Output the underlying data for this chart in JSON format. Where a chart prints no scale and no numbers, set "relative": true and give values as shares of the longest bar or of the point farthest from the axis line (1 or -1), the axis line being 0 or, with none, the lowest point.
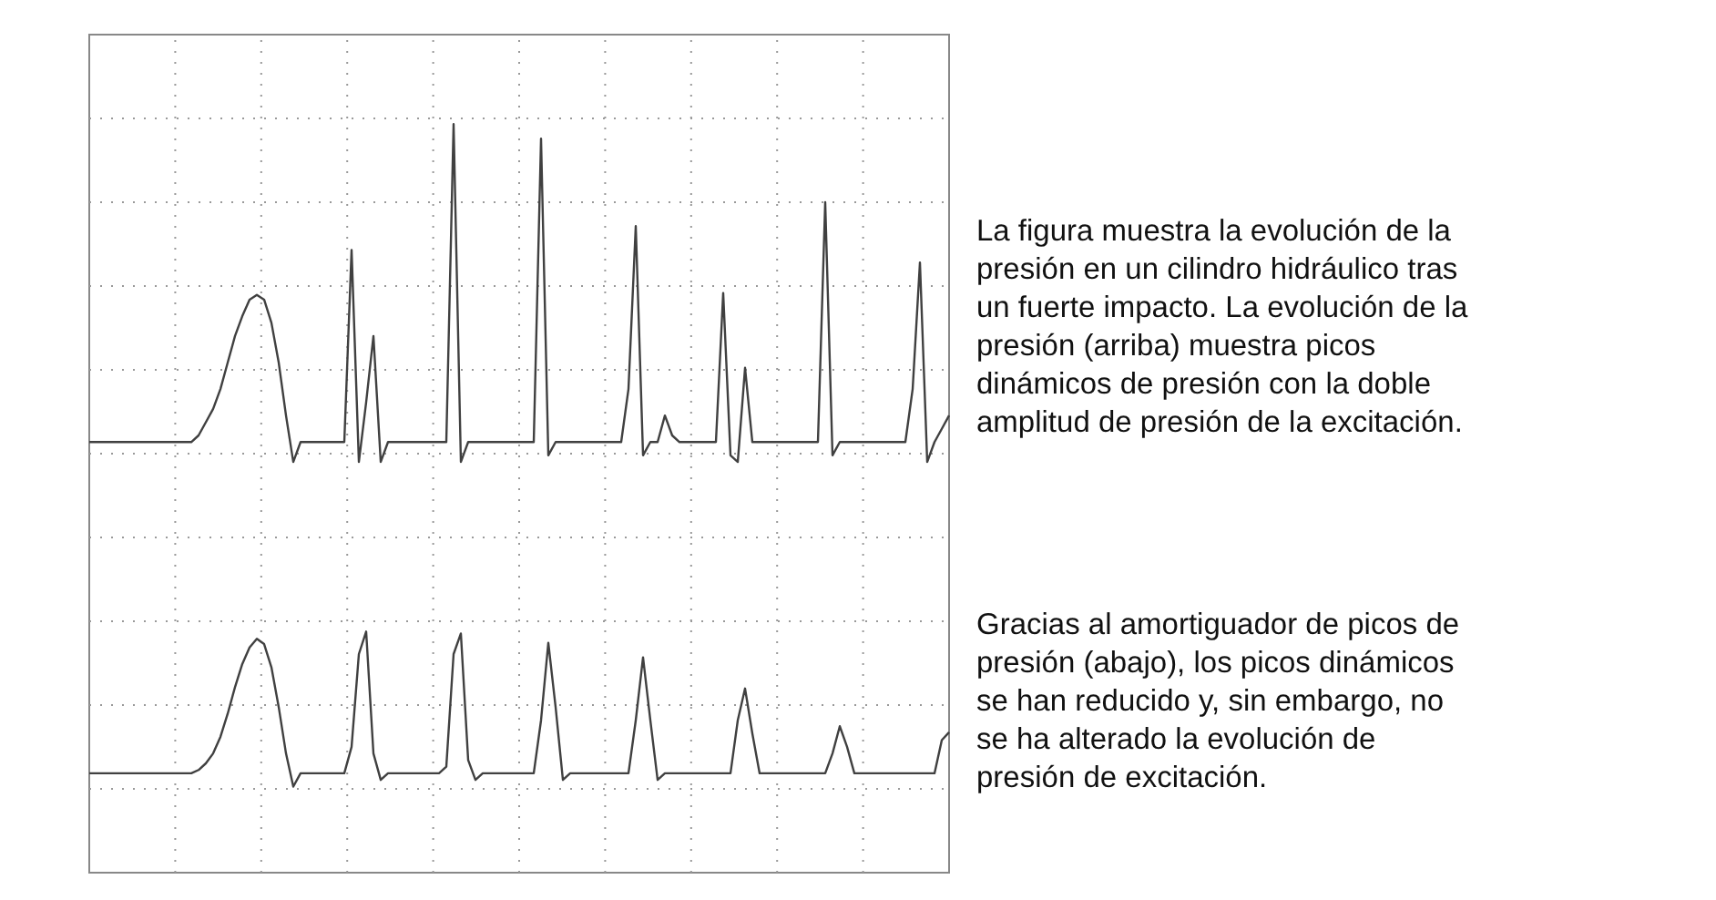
{
  "chart_data": {
    "type": "line",
    "relative": true,
    "grid": true,
    "categories": [
      null,
      null,
      null,
      null,
      null,
      null,
      null,
      null,
      null,
      null,
      null,
      null,
      null,
      null,
      null,
      null,
      null,
      null,
      null,
      null,
      null,
      null,
      null,
      null,
      null,
      null,
      null,
      null,
      null,
      null,
      null,
      null,
      null,
      null,
      null,
      null,
      null,
      null,
      null,
      null,
      null,
      null,
      null,
      null,
      null,
      null,
      null,
      null,
      null,
      null,
      null,
      null,
      null,
      null,
      null,
      null,
      null,
      null,
      null,
      null,
      null,
      null,
      null,
      null,
      null,
      null,
      null,
      null,
      null,
      null,
      null,
      null,
      null,
      null,
      null,
      null,
      null,
      null,
      null,
      null,
      null,
      null,
      null,
      null,
      null,
      null,
      null,
      null,
      null,
      null,
      null,
      null,
      null,
      null,
      null,
      null,
      null,
      null,
      null,
      null,
      null,
      null,
      null,
      null,
      null,
      null,
      null,
      null,
      null,
      null,
      null,
      null,
      null,
      null,
      null,
      null,
      null,
      null,
      null
    ],
    "series": [
      {
        "color": "#404040",
        "values": [
          0.52,
          0.52,
          0.52,
          0.52,
          0.52,
          0.52,
          0.52,
          0.52,
          0.52,
          0.52,
          0.52,
          0.52,
          0.52,
          0.52,
          0.52,
          0.53,
          0.55,
          0.57,
          0.6,
          0.64,
          0.68,
          0.71,
          0.735,
          0.742,
          0.735,
          0.7,
          0.64,
          0.56,
          0.49,
          0.52,
          0.52,
          0.52,
          0.52,
          0.52,
          0.52,
          0.52,
          0.81,
          0.49,
          0.58,
          0.68,
          0.49,
          0.52,
          0.52,
          0.52,
          0.52,
          0.52,
          0.52,
          0.52,
          0.52,
          0.52,
          1.0,
          0.49,
          0.52,
          0.52,
          0.52,
          0.52,
          0.52,
          0.52,
          0.52,
          0.52,
          0.52,
          0.52,
          0.978,
          0.5,
          0.52,
          0.52,
          0.52,
          0.52,
          0.52,
          0.52,
          0.52,
          0.52,
          0.52,
          0.52,
          0.6,
          0.846,
          0.5,
          0.52,
          0.52,
          0.56,
          0.53,
          0.52,
          0.52,
          0.52,
          0.52,
          0.52,
          0.52,
          0.745,
          0.5,
          0.49,
          0.632,
          0.52,
          0.52,
          0.52,
          0.52,
          0.52,
          0.52,
          0.52,
          0.52,
          0.52,
          0.52,
          0.882,
          0.5,
          0.52,
          0.52,
          0.52,
          0.52,
          0.52,
          0.52,
          0.52,
          0.52,
          0.52,
          0.52,
          0.6,
          0.791,
          0.49,
          0.52,
          0.54,
          0.56
        ]
      },
      {
        "color": "#404040",
        "values": [
          0.02,
          0.02,
          0.02,
          0.02,
          0.02,
          0.02,
          0.02,
          0.02,
          0.02,
          0.02,
          0.02,
          0.02,
          0.02,
          0.02,
          0.02,
          0.025,
          0.035,
          0.05,
          0.075,
          0.11,
          0.15,
          0.185,
          0.21,
          0.223,
          0.215,
          0.18,
          0.12,
          0.05,
          0.0,
          0.02,
          0.02,
          0.02,
          0.02,
          0.02,
          0.02,
          0.02,
          0.06,
          0.2,
          0.234,
          0.05,
          0.01,
          0.02,
          0.02,
          0.02,
          0.02,
          0.02,
          0.02,
          0.02,
          0.02,
          0.03,
          0.2,
          0.231,
          0.04,
          0.01,
          0.02,
          0.02,
          0.02,
          0.02,
          0.02,
          0.02,
          0.02,
          0.02,
          0.1,
          0.217,
          0.12,
          0.01,
          0.02,
          0.02,
          0.02,
          0.02,
          0.02,
          0.02,
          0.02,
          0.02,
          0.02,
          0.1,
          0.195,
          0.1,
          0.01,
          0.02,
          0.02,
          0.02,
          0.02,
          0.02,
          0.02,
          0.02,
          0.02,
          0.02,
          0.02,
          0.1,
          0.148,
          0.08,
          0.02,
          0.02,
          0.02,
          0.02,
          0.02,
          0.02,
          0.02,
          0.02,
          0.02,
          0.02,
          0.05,
          0.091,
          0.06,
          0.02,
          0.02,
          0.02,
          0.02,
          0.02,
          0.02,
          0.02,
          0.02,
          0.02,
          0.02,
          0.02,
          0.02,
          0.07,
          0.082
        ]
      }
    ],
    "annotations": [
      "La figura muestra la evolución de la\npresión en un cilindro hidráulico tras\nun fuerte impacto. La evolución de la\npresión (arriba) muestra picos\ndinámicos de presión con la doble\namplitud de presión de la excitación.",
      "Gracias al amortiguador de picos de\npresión (abajo), los picos dinámicos\nse han reducido y, sin embargo, no\nse ha alterado la evolución de\npresión de excitación."
    ]
  }
}
